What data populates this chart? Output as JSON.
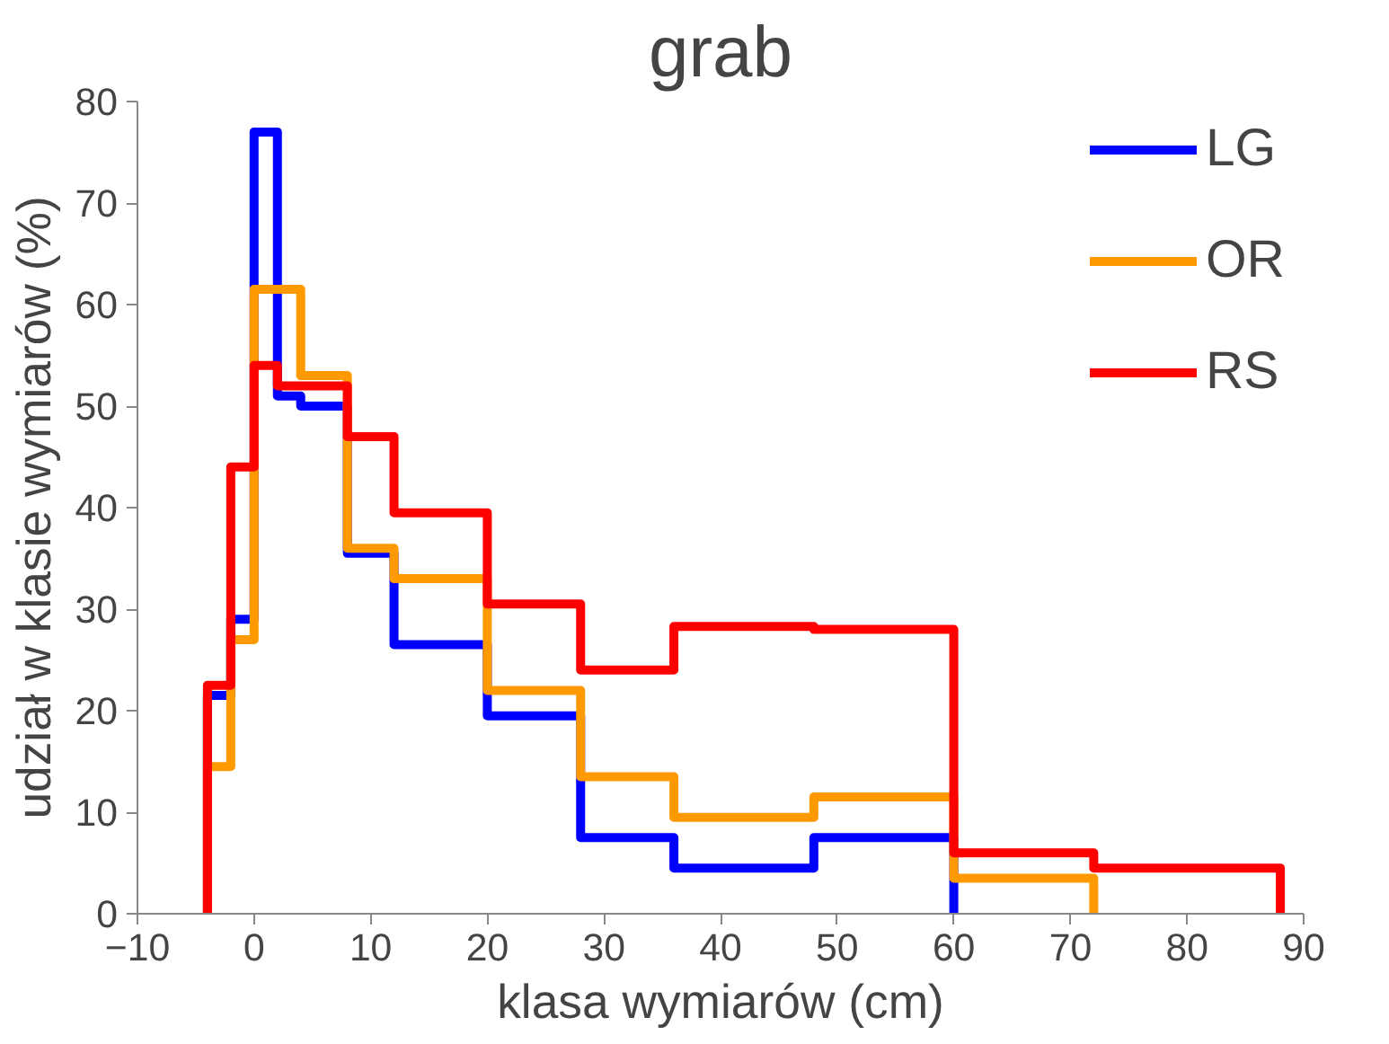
{
  "chart_data": {
    "type": "step",
    "title": "grab",
    "xlabel": "klasa wymiarów (cm)",
    "ylabel": "udział w klasie wymiarów (%)",
    "xlim": [
      -10,
      90
    ],
    "xticks": [
      -10,
      0,
      10,
      20,
      30,
      40,
      50,
      60,
      70,
      80,
      90
    ],
    "ylim": [
      0,
      80
    ],
    "yticks": [
      0,
      10,
      20,
      30,
      40,
      50,
      60,
      70,
      80
    ],
    "grid": false,
    "legend": "top right",
    "series": [
      {
        "name": "LG",
        "color": "#0000ff",
        "x": [
          -4,
          -4,
          -2,
          0,
          2,
          4,
          8,
          12,
          20,
          28,
          36,
          48,
          60
        ],
        "values": [
          0,
          21.5,
          29,
          77,
          51,
          50,
          35.5,
          26.5,
          19.5,
          7.5,
          4.5,
          7.5,
          0
        ]
      },
      {
        "name": "OR",
        "color": "#ff9900",
        "x": [
          -4,
          -4,
          -2,
          0,
          2,
          4,
          8,
          12,
          20,
          28,
          36,
          48,
          60,
          72
        ],
        "values": [
          0,
          14.5,
          27,
          61.5,
          61.5,
          53,
          36,
          33,
          22,
          13.5,
          9.5,
          11.5,
          3.5,
          0
        ]
      },
      {
        "name": "RS",
        "color": "#ff0000",
        "x": [
          -4,
          -4,
          -2,
          0,
          2,
          4,
          8,
          12,
          20,
          28,
          36,
          48,
          60,
          72,
          88
        ],
        "values": [
          0,
          22.5,
          44,
          54,
          52,
          52,
          47,
          39.5,
          30.5,
          24,
          28.3,
          28,
          6,
          4.5,
          0
        ]
      }
    ]
  }
}
